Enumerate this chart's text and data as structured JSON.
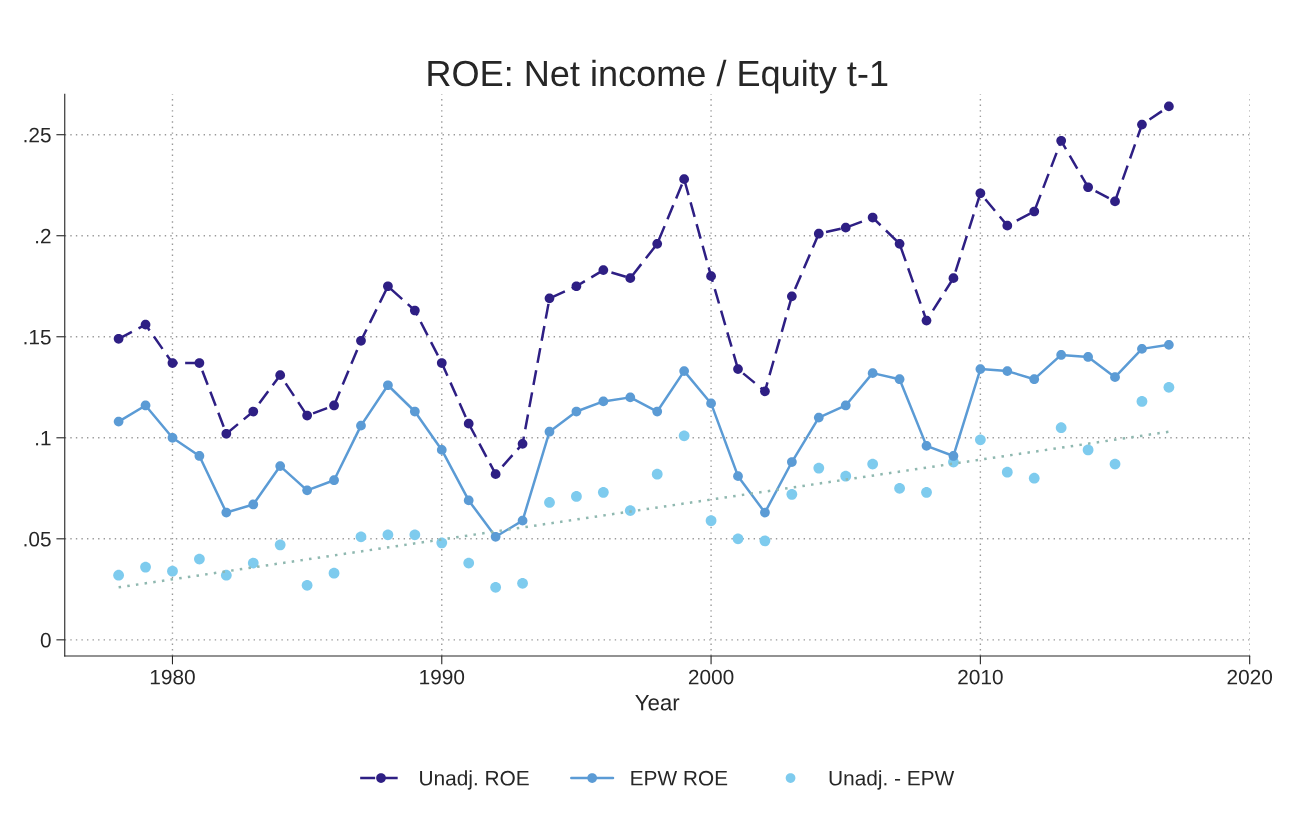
{
  "chart_data": {
    "type": "line",
    "title": "ROE: Net income / Equity t-1",
    "xlabel": "Year",
    "xlim": [
      1976,
      2020
    ],
    "xticks": [
      1980,
      1990,
      2000,
      2010,
      2020
    ],
    "ylim": [
      -0.008,
      0.27
    ],
    "yticks": [
      {
        "value": 0,
        "label": "0"
      },
      {
        "value": 0.05,
        "label": ".05"
      },
      {
        "value": 0.1,
        "label": ".1"
      },
      {
        "value": 0.15,
        "label": ".15"
      },
      {
        "value": 0.2,
        "label": ".2"
      },
      {
        "value": 0.25,
        "label": ".25"
      }
    ],
    "grid": true,
    "legend": "bottom",
    "x": [
      1978,
      1979,
      1980,
      1981,
      1982,
      1983,
      1984,
      1985,
      1986,
      1987,
      1988,
      1989,
      1990,
      1991,
      1992,
      1993,
      1994,
      1995,
      1996,
      1997,
      1998,
      1999,
      2000,
      2001,
      2002,
      2003,
      2004,
      2005,
      2006,
      2007,
      2008,
      2009,
      2010,
      2011,
      2012,
      2013,
      2014,
      2015,
      2016,
      2017
    ],
    "series": [
      {
        "name": "Unadj. ROE",
        "color": "#2e1f84",
        "marker": "circle",
        "line_style": "dashed",
        "values": [
          0.149,
          0.156,
          0.137,
          0.137,
          0.102,
          0.113,
          0.131,
          0.111,
          0.116,
          0.148,
          0.175,
          0.163,
          0.137,
          0.107,
          0.082,
          0.097,
          0.169,
          0.175,
          0.183,
          0.179,
          0.196,
          0.228,
          0.18,
          0.134,
          0.123,
          0.17,
          0.201,
          0.204,
          0.209,
          0.196,
          0.158,
          0.179,
          0.221,
          0.205,
          0.212,
          0.247,
          0.224,
          0.217,
          0.255,
          0.264
        ]
      },
      {
        "name": "EPW ROE",
        "color": "#5b9bd5",
        "marker": "circle",
        "line_style": "solid",
        "values": [
          0.108,
          0.116,
          0.1,
          0.091,
          0.063,
          0.067,
          0.086,
          0.074,
          0.079,
          0.106,
          0.126,
          0.113,
          0.094,
          0.069,
          0.051,
          0.059,
          0.103,
          0.113,
          0.118,
          0.12,
          0.113,
          0.133,
          0.117,
          0.081,
          0.063,
          0.088,
          0.11,
          0.116,
          0.132,
          0.129,
          0.096,
          0.091,
          0.134,
          0.133,
          0.129,
          0.141,
          0.14,
          0.13,
          0.144,
          0.146
        ]
      },
      {
        "name": "Unadj. - EPW",
        "type": "scatter",
        "color": "#7ecbee",
        "marker": "circle",
        "values": [
          0.032,
          0.036,
          0.034,
          0.04,
          0.032,
          0.038,
          0.047,
          0.027,
          0.033,
          0.051,
          0.052,
          0.052,
          0.048,
          0.038,
          0.026,
          0.028,
          0.068,
          0.071,
          0.073,
          0.064,
          0.082,
          0.101,
          0.059,
          0.05,
          0.049,
          0.072,
          0.085,
          0.081,
          0.087,
          0.075,
          0.073,
          0.088,
          0.099,
          0.083,
          0.08,
          0.105,
          0.094,
          0.087,
          0.118,
          0.125
        ]
      },
      {
        "color": "#8fb8b0",
        "marker": "none",
        "line_style": "dotted",
        "x": [
          1978,
          2017
        ],
        "values": [
          0.026,
          0.103
        ]
      }
    ]
  }
}
